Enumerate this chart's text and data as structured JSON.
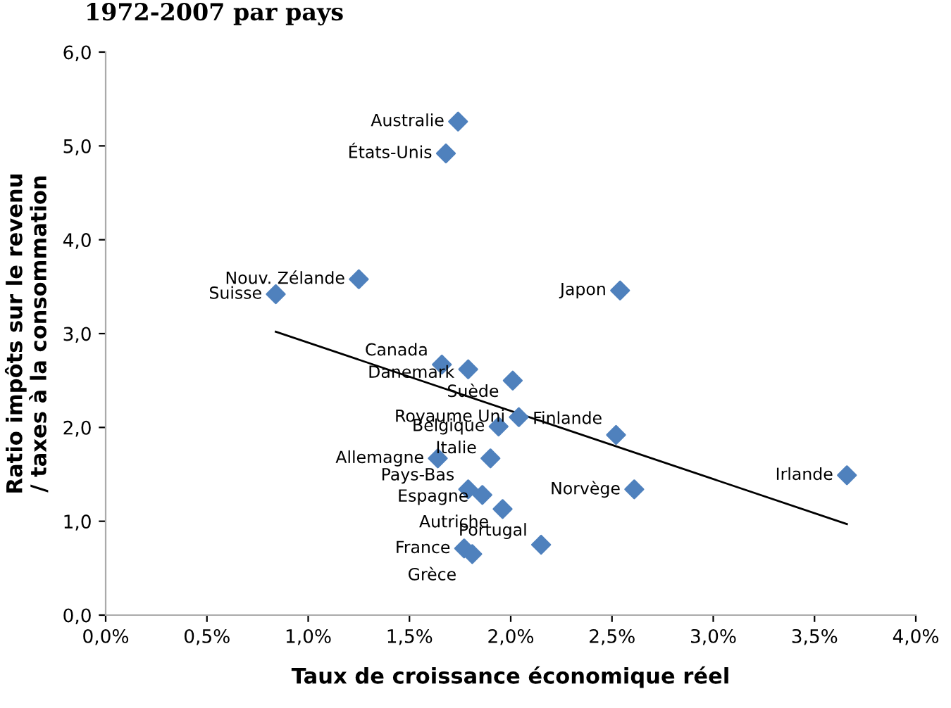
{
  "chart_data": {
    "type": "scatter",
    "title": "1972-2007 par pays",
    "xlabel": "Taux de croissance économique réel",
    "ylabel": "Ratio impôts sur le revenu\n/ taxes à la consommation",
    "xlim": [
      0,
      4.0
    ],
    "ylim": [
      0,
      6.0
    ],
    "xticks": [
      {
        "value": 0,
        "label": "0,0%"
      },
      {
        "value": 0.5,
        "label": "0,5%"
      },
      {
        "value": 1.0,
        "label": "1,0%"
      },
      {
        "value": 1.5,
        "label": "1,5%"
      },
      {
        "value": 2.0,
        "label": "2,0%"
      },
      {
        "value": 2.5,
        "label": "2,5%"
      },
      {
        "value": 3.0,
        "label": "3,0%"
      },
      {
        "value": 3.5,
        "label": "3,5%"
      },
      {
        "value": 4.0,
        "label": "4,0%"
      }
    ],
    "yticks": [
      {
        "value": 0,
        "label": "0,0"
      },
      {
        "value": 1,
        "label": "1,0"
      },
      {
        "value": 2,
        "label": "2,0"
      },
      {
        "value": 3,
        "label": "3,0"
      },
      {
        "value": 4,
        "label": "4,0"
      },
      {
        "value": 5,
        "label": "5,0"
      },
      {
        "value": 6,
        "label": "6,0"
      }
    ],
    "grid": false,
    "legend": false,
    "series": [
      {
        "type": "scatter",
        "color": "#4f81bd",
        "marker": "diamond",
        "x": [
          1.74,
          1.68,
          1.25,
          0.84,
          2.54,
          1.66,
          1.79,
          2.01,
          2.04,
          1.94,
          2.52,
          1.9,
          1.64,
          1.79,
          1.86,
          1.96,
          2.61,
          3.66,
          2.15,
          1.77,
          1.81
        ],
        "values": [
          5.26,
          4.92,
          3.58,
          3.42,
          3.46,
          2.67,
          2.62,
          2.5,
          2.11,
          2.01,
          1.92,
          1.67,
          1.67,
          1.34,
          1.28,
          1.13,
          1.34,
          1.49,
          0.75,
          0.71,
          0.65
        ]
      },
      {
        "type": "line",
        "color": "#000000",
        "marker": "none",
        "line_style": "solid",
        "x": [
          0.84,
          3.66
        ],
        "values": [
          3.02,
          0.97
        ]
      }
    ],
    "annotations": [
      {
        "text": "Australie",
        "x": 1.74,
        "y": 5.26
      },
      {
        "text": "États-Unis",
        "x": 1.68,
        "y": 4.92
      },
      {
        "text": "Nouv. Zélande",
        "x": 1.25,
        "y": 3.58
      },
      {
        "text": "Suisse",
        "x": 0.84,
        "y": 3.42
      },
      {
        "text": "Japon",
        "x": 2.54,
        "y": 3.46
      },
      {
        "text": "Canada",
        "x": 1.66,
        "y": 2.67
      },
      {
        "text": "Danemark",
        "x": 1.79,
        "y": 2.62
      },
      {
        "text": "Suède",
        "x": 2.01,
        "y": 2.5
      },
      {
        "text": "Royaume Uni",
        "x": 2.04,
        "y": 2.11
      },
      {
        "text": "Belgique",
        "x": 1.94,
        "y": 2.01
      },
      {
        "text": "Finlande",
        "x": 2.52,
        "y": 1.92
      },
      {
        "text": "Italie",
        "x": 1.9,
        "y": 1.67
      },
      {
        "text": "Allemagne",
        "x": 1.64,
        "y": 1.67
      },
      {
        "text": "Pays-Bas",
        "x": 1.79,
        "y": 1.34
      },
      {
        "text": "Espagne",
        "x": 1.86,
        "y": 1.28
      },
      {
        "text": "Autriche",
        "x": 1.96,
        "y": 1.13
      },
      {
        "text": "Norvège",
        "x": 2.61,
        "y": 1.34
      },
      {
        "text": "Irlande",
        "x": 3.66,
        "y": 1.49
      },
      {
        "text": "Portugal",
        "x": 2.15,
        "y": 0.75
      },
      {
        "text": "France",
        "x": 1.77,
        "y": 0.71
      },
      {
        "text": "Grèce",
        "x": 1.81,
        "y": 0.65
      }
    ]
  }
}
